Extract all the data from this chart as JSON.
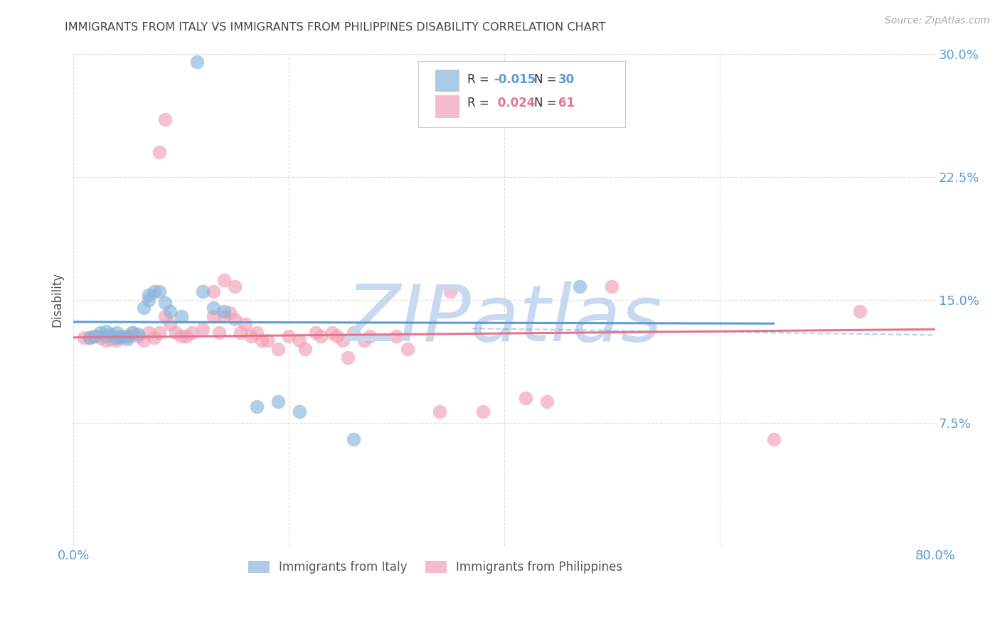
{
  "title": "IMMIGRANTS FROM ITALY VS IMMIGRANTS FROM PHILIPPINES DISABILITY CORRELATION CHART",
  "source": "Source: ZipAtlas.com",
  "ylabel": "Disability",
  "xlim": [
    0.0,
    0.8
  ],
  "ylim": [
    0.0,
    0.3
  ],
  "yticks": [
    0.0,
    0.075,
    0.15,
    0.225,
    0.3
  ],
  "ytick_labels": [
    "",
    "7.5%",
    "15.0%",
    "22.5%",
    "30.0%"
  ],
  "xticks": [
    0.0,
    0.2,
    0.4,
    0.6,
    0.8
  ],
  "xtick_labels": [
    "0.0%",
    "",
    "",
    "",
    "80.0%"
  ],
  "legend_italy_R": "-0.015",
  "legend_italy_N": "30",
  "legend_phil_R": "0.024",
  "legend_phil_N": "61",
  "italy_color": "#8ab4dc",
  "phil_color": "#f2a0b5",
  "italy_scatter": [
    [
      0.015,
      0.127
    ],
    [
      0.02,
      0.128
    ],
    [
      0.025,
      0.13
    ],
    [
      0.03,
      0.131
    ],
    [
      0.03,
      0.128
    ],
    [
      0.035,
      0.129
    ],
    [
      0.04,
      0.13
    ],
    [
      0.04,
      0.127
    ],
    [
      0.045,
      0.128
    ],
    [
      0.05,
      0.126
    ],
    [
      0.05,
      0.128
    ],
    [
      0.055,
      0.13
    ],
    [
      0.06,
      0.129
    ],
    [
      0.065,
      0.145
    ],
    [
      0.07,
      0.15
    ],
    [
      0.07,
      0.153
    ],
    [
      0.075,
      0.155
    ],
    [
      0.08,
      0.155
    ],
    [
      0.085,
      0.148
    ],
    [
      0.09,
      0.143
    ],
    [
      0.1,
      0.14
    ],
    [
      0.12,
      0.155
    ],
    [
      0.13,
      0.145
    ],
    [
      0.14,
      0.143
    ],
    [
      0.17,
      0.085
    ],
    [
      0.19,
      0.088
    ],
    [
      0.21,
      0.082
    ],
    [
      0.26,
      0.065
    ],
    [
      0.115,
      0.295
    ],
    [
      0.47,
      0.158
    ]
  ],
  "phil_scatter": [
    [
      0.01,
      0.127
    ],
    [
      0.015,
      0.127
    ],
    [
      0.02,
      0.128
    ],
    [
      0.025,
      0.127
    ],
    [
      0.03,
      0.125
    ],
    [
      0.035,
      0.126
    ],
    [
      0.04,
      0.125
    ],
    [
      0.045,
      0.127
    ],
    [
      0.05,
      0.128
    ],
    [
      0.055,
      0.13
    ],
    [
      0.06,
      0.128
    ],
    [
      0.065,
      0.125
    ],
    [
      0.07,
      0.13
    ],
    [
      0.075,
      0.127
    ],
    [
      0.08,
      0.13
    ],
    [
      0.085,
      0.14
    ],
    [
      0.09,
      0.135
    ],
    [
      0.095,
      0.13
    ],
    [
      0.1,
      0.128
    ],
    [
      0.105,
      0.128
    ],
    [
      0.11,
      0.13
    ],
    [
      0.12,
      0.132
    ],
    [
      0.13,
      0.14
    ],
    [
      0.135,
      0.13
    ],
    [
      0.14,
      0.14
    ],
    [
      0.145,
      0.142
    ],
    [
      0.15,
      0.138
    ],
    [
      0.155,
      0.13
    ],
    [
      0.16,
      0.135
    ],
    [
      0.165,
      0.128
    ],
    [
      0.17,
      0.13
    ],
    [
      0.175,
      0.125
    ],
    [
      0.18,
      0.125
    ],
    [
      0.19,
      0.12
    ],
    [
      0.2,
      0.128
    ],
    [
      0.21,
      0.125
    ],
    [
      0.215,
      0.12
    ],
    [
      0.225,
      0.13
    ],
    [
      0.23,
      0.128
    ],
    [
      0.24,
      0.13
    ],
    [
      0.245,
      0.128
    ],
    [
      0.25,
      0.125
    ],
    [
      0.255,
      0.115
    ],
    [
      0.26,
      0.13
    ],
    [
      0.27,
      0.125
    ],
    [
      0.275,
      0.128
    ],
    [
      0.3,
      0.128
    ],
    [
      0.31,
      0.12
    ],
    [
      0.34,
      0.082
    ],
    [
      0.38,
      0.082
    ],
    [
      0.42,
      0.09
    ],
    [
      0.44,
      0.088
    ],
    [
      0.35,
      0.155
    ],
    [
      0.5,
      0.158
    ],
    [
      0.08,
      0.24
    ],
    [
      0.085,
      0.26
    ],
    [
      0.13,
      0.155
    ],
    [
      0.14,
      0.162
    ],
    [
      0.15,
      0.158
    ],
    [
      0.65,
      0.065
    ],
    [
      0.73,
      0.143
    ]
  ],
  "background_color": "#ffffff",
  "grid_color": "#dddddd",
  "title_color": "#444444",
  "axis_color": "#5b9bd5",
  "italy_line_color": "#5b9bd5",
  "phil_line_color": "#e8728e",
  "dashed_line_color": "#5b9bd5",
  "watermark": "ZIPatlas",
  "watermark_color": "#c8d8ee",
  "italy_line": [
    [
      0.0,
      0.1365
    ],
    [
      0.65,
      0.1355
    ]
  ],
  "phil_line": [
    [
      0.0,
      0.127
    ],
    [
      0.8,
      0.132
    ]
  ],
  "dashed_line": [
    [
      0.37,
      0.1325
    ],
    [
      0.8,
      0.1285
    ]
  ]
}
